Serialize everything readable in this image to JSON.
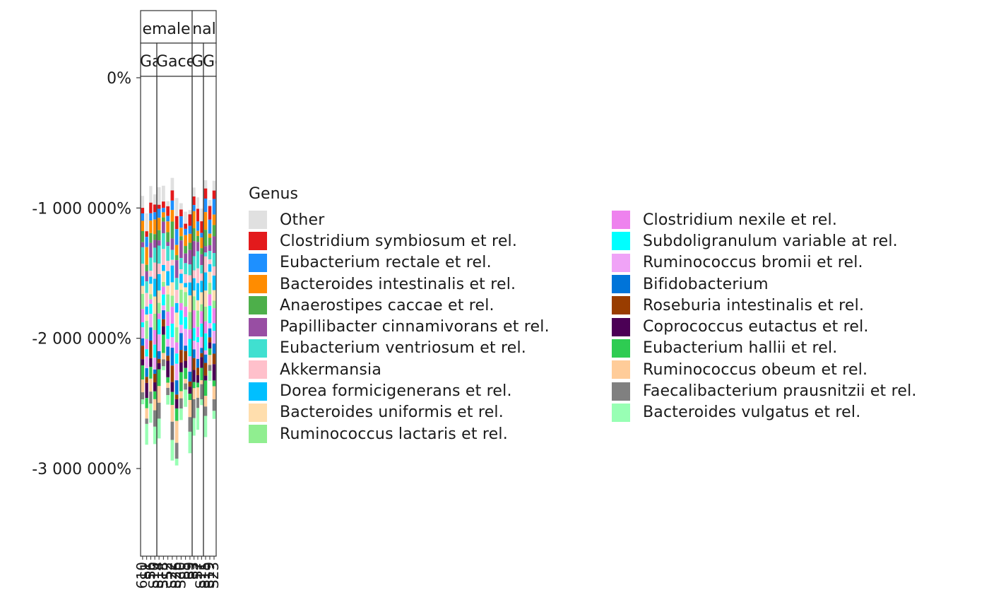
{
  "chart_data": {
    "type": "bar",
    "stacked": true,
    "facets": {
      "rows": [
        "Gace",
        "Gace",
        "Gce",
        "Gce"
      ],
      "columns": [
        {
          "label": "emale",
          "sub": [
            {
              "label": "Gace",
              "n": 4
            },
            {
              "label": "Gace",
              "n": 8
            }
          ]
        },
        {
          "label": "nal",
          "sub": [
            {
              "label": "Gce",
              "n": 3
            },
            {
              "label": "Gce",
              "n": 3
            }
          ]
        }
      ]
    },
    "y_axis": {
      "tick_labels": [
        "0%",
        "-1 000 000%",
        "-2 000 000%",
        "-3 000 000%"
      ],
      "tick_values": [
        0,
        -1000000,
        -2000000,
        -3000000
      ],
      "ylim": [
        -3620000,
        380000
      ]
    },
    "x_axis": {
      "tick_labels": [
        "610",
        "S1",
        "S6",
        "S10",
        "S14",
        "S18",
        "S2",
        "S22",
        "S26",
        "S30",
        "S5",
        "S9",
        "S3",
        "S7",
        "S11",
        "S15",
        "S19",
        "S23"
      ]
    },
    "legend": {
      "title": "Genus",
      "columns": [
        [
          {
            "name": "Other",
            "color": "#e0e0e0"
          },
          {
            "name": "Clostridium symbiosum et rel.",
            "color": "#e31a1c"
          },
          {
            "name": "Eubacterium rectale et rel.",
            "color": "#1e90ff"
          },
          {
            "name": "Bacteroides intestinalis et rel.",
            "color": "#ff8c00"
          },
          {
            "name": "Anaerostipes caccae et rel.",
            "color": "#4daf4a"
          },
          {
            "name": "Papillibacter cinnamivorans et rel.",
            "color": "#984ea3"
          },
          {
            "name": "Eubacterium ventriosum et rel.",
            "color": "#40e0d0"
          },
          {
            "name": "Akkermansia",
            "color": "#ffc0cb"
          },
          {
            "name": "Dorea formicigenerans et rel.",
            "color": "#00bfff"
          },
          {
            "name": "Bacteroides uniformis et rel.",
            "color": "#ffdead"
          },
          {
            "name": "Ruminococcus lactaris et rel.",
            "color": "#90ee90"
          }
        ],
        [
          {
            "name": "Clostridium nexile et rel.",
            "color": "#ee82ee"
          },
          {
            "name": "Subdoligranulum variable at rel.",
            "color": "#00ffff"
          },
          {
            "name": "Ruminococcus bromii et rel.",
            "color": "#f0a3f7"
          },
          {
            "name": "Bifidobacterium",
            "color": "#0074d9"
          },
          {
            "name": "Roseburia intestinalis et rel.",
            "color": "#993d00"
          },
          {
            "name": "Coprococcus eutactus et rel.",
            "color": "#4b0055"
          },
          {
            "name": "Eubacterium hallii et rel.",
            "color": "#2ecc52"
          },
          {
            "name": "Ruminococcus obeum et rel.",
            "color": "#ffcc99"
          },
          {
            "name": "Faecalibacterium prausnitzii et rel.",
            "color": "#808080"
          },
          {
            "name": "Bacteroides vulgatus et rel.",
            "color": "#98ffb4"
          }
        ]
      ]
    }
  }
}
